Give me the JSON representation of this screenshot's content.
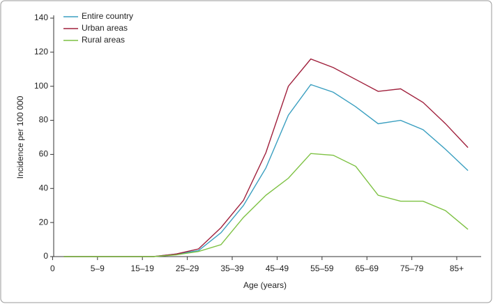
{
  "chart_data": {
    "type": "line",
    "x_label": "Age (years)",
    "y_label": "Incidence per 100 000",
    "categories": [
      "0",
      null,
      "5–9",
      null,
      "15–19",
      null,
      "25–29",
      null,
      "35–39",
      null,
      "45–49",
      null,
      "55–59",
      null,
      "65–69",
      null,
      "75–79",
      null,
      "85+"
    ],
    "series": [
      {
        "name": "Entire country",
        "color": "#3a9fc0",
        "values": [
          0,
          0,
          0,
          0,
          0,
          1.5,
          3.5,
          14,
          30,
          52,
          83,
          101,
          96.5,
          88,
          78,
          80,
          74.5,
          63,
          50.5
        ]
      },
      {
        "name": "Urban areas",
        "color": "#a0203c",
        "values": [
          0,
          0,
          0,
          0,
          0,
          1.5,
          4.5,
          17,
          33,
          61,
          100,
          116,
          111,
          104,
          97,
          98.5,
          90.5,
          78,
          64
        ]
      },
      {
        "name": "Rural areas",
        "color": "#7dc142",
        "values": [
          0,
          0,
          0,
          0,
          0,
          1,
          3,
          7,
          23,
          36,
          46,
          60.5,
          59.5,
          53,
          36,
          32.5,
          32.5,
          27,
          16
        ]
      }
    ],
    "ylim": [
      0,
      140
    ],
    "yticks": [
      0,
      20,
      40,
      60,
      80,
      100,
      120,
      140
    ],
    "legend": "upper left"
  }
}
